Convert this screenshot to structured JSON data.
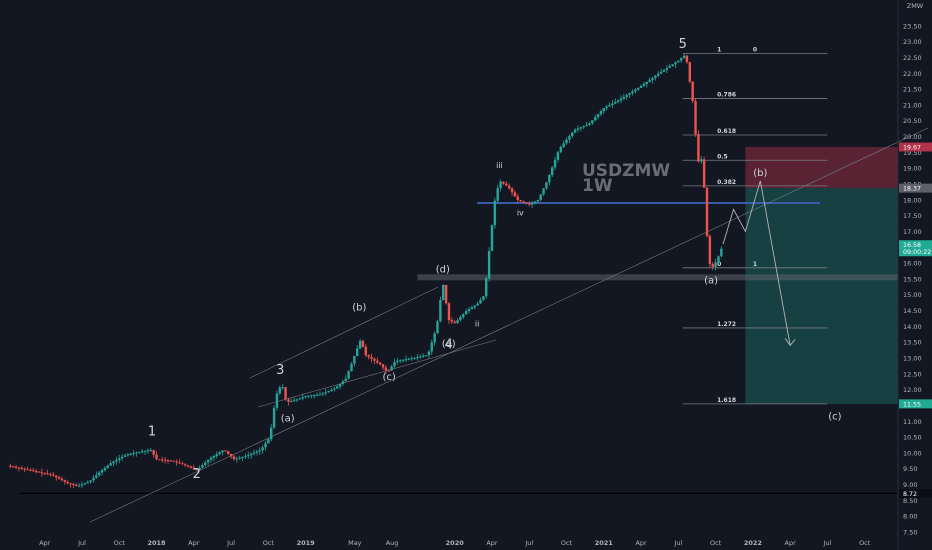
{
  "chart_data": {
    "type": "candlestick",
    "title": "USDZMW",
    "subtitle": "1W",
    "currency_label": "ZMW",
    "ylim": [
      7.5,
      24.0
    ],
    "y_ticks": [
      "7.50",
      "8.00",
      "8.50",
      "9.00",
      "9.50",
      "10.00",
      "10.50",
      "11.00",
      "11.50",
      "12.00",
      "12.50",
      "13.00",
      "13.50",
      "14.00",
      "14.50",
      "15.00",
      "15.50",
      "16.00",
      "16.50",
      "17.00",
      "17.50",
      "18.00",
      "18.50",
      "19.00",
      "19.50",
      "20.00",
      "20.50",
      "21.00",
      "21.50",
      "22.00",
      "22.50",
      "23.00",
      "23.50"
    ],
    "x_ticks": [
      {
        "t": 2017.25,
        "label": "Apr"
      },
      {
        "t": 2017.5,
        "label": "Jul"
      },
      {
        "t": 2017.75,
        "label": "Oct"
      },
      {
        "t": 2018.0,
        "label": "2018"
      },
      {
        "t": 2018.25,
        "label": "Apr"
      },
      {
        "t": 2018.5,
        "label": "Jul"
      },
      {
        "t": 2018.75,
        "label": "Oct"
      },
      {
        "t": 2019.0,
        "label": "2019"
      },
      {
        "t": 2019.33,
        "label": "May"
      },
      {
        "t": 2019.58,
        "label": "Aug"
      },
      {
        "t": 2020.0,
        "label": "2020"
      },
      {
        "t": 2020.25,
        "label": "Apr"
      },
      {
        "t": 2020.5,
        "label": "Jul"
      },
      {
        "t": 2020.75,
        "label": "Oct"
      },
      {
        "t": 2021.0,
        "label": "2021"
      },
      {
        "t": 2021.25,
        "label": "Apr"
      },
      {
        "t": 2021.5,
        "label": "Jul"
      },
      {
        "t": 2021.75,
        "label": "Oct"
      },
      {
        "t": 2022.0,
        "label": "2022"
      },
      {
        "t": 2022.25,
        "label": "Apr"
      },
      {
        "t": 2022.5,
        "label": "Jul"
      },
      {
        "t": 2022.75,
        "label": "Oct"
      }
    ],
    "price_path": [
      [
        2017.0,
        9.6
      ],
      [
        2017.15,
        9.45
      ],
      [
        2017.3,
        9.3
      ],
      [
        2017.4,
        9.05
      ],
      [
        2017.47,
        8.95
      ],
      [
        2017.55,
        9.1
      ],
      [
        2017.62,
        9.4
      ],
      [
        2017.7,
        9.7
      ],
      [
        2017.8,
        9.95
      ],
      [
        2017.9,
        10.05
      ],
      [
        2017.96,
        10.1
      ],
      [
        2018.0,
        9.8
      ],
      [
        2018.1,
        9.75
      ],
      [
        2018.2,
        9.6
      ],
      [
        2018.27,
        9.45
      ],
      [
        2018.35,
        9.8
      ],
      [
        2018.45,
        10.1
      ],
      [
        2018.52,
        9.8
      ],
      [
        2018.6,
        9.9
      ],
      [
        2018.7,
        10.1
      ],
      [
        2018.76,
        10.5
      ],
      [
        2018.8,
        11.8
      ],
      [
        2018.84,
        12.2
      ],
      [
        2018.87,
        11.6
      ],
      [
        2018.95,
        11.7
      ],
      [
        2019.0,
        11.8
      ],
      [
        2019.1,
        11.85
      ],
      [
        2019.2,
        12.05
      ],
      [
        2019.27,
        12.35
      ],
      [
        2019.33,
        13.1
      ],
      [
        2019.37,
        13.6
      ],
      [
        2019.4,
        13.1
      ],
      [
        2019.5,
        12.8
      ],
      [
        2019.55,
        12.55
      ],
      [
        2019.6,
        12.9
      ],
      [
        2019.72,
        13.0
      ],
      [
        2019.82,
        13.1
      ],
      [
        2019.88,
        14.0
      ],
      [
        2019.92,
        15.4
      ],
      [
        2019.96,
        14.2
      ],
      [
        2020.0,
        14.1
      ],
      [
        2020.08,
        14.5
      ],
      [
        2020.15,
        14.7
      ],
      [
        2020.2,
        15.0
      ],
      [
        2020.24,
        16.8
      ],
      [
        2020.27,
        18.0
      ],
      [
        2020.3,
        18.6
      ],
      [
        2020.36,
        18.4
      ],
      [
        2020.42,
        18.0
      ],
      [
        2020.5,
        17.85
      ],
      [
        2020.56,
        18.0
      ],
      [
        2020.62,
        18.6
      ],
      [
        2020.7,
        19.6
      ],
      [
        2020.8,
        20.2
      ],
      [
        2020.9,
        20.4
      ],
      [
        2021.0,
        20.9
      ],
      [
        2021.1,
        21.15
      ],
      [
        2021.25,
        21.6
      ],
      [
        2021.4,
        22.1
      ],
      [
        2021.5,
        22.4
      ],
      [
        2021.55,
        22.6
      ],
      [
        2021.6,
        21.0
      ],
      [
        2021.63,
        19.2
      ],
      [
        2021.66,
        19.3
      ],
      [
        2021.68,
        17.9
      ],
      [
        2021.7,
        16.2
      ],
      [
        2021.72,
        15.8
      ],
      [
        2021.76,
        16.1
      ],
      [
        2021.8,
        16.6
      ]
    ],
    "projection_path": [
      [
        2021.8,
        16.6
      ],
      [
        2021.87,
        17.7
      ],
      [
        2021.95,
        17.0
      ],
      [
        2022.05,
        18.6
      ],
      [
        2022.25,
        13.4
      ]
    ],
    "horizontal_levels": [
      {
        "y": 17.9,
        "color": "#3b5bab",
        "kind": "support"
      },
      {
        "y": 15.55,
        "color": "#5d606b",
        "kind": "zone"
      },
      {
        "y": 8.72,
        "color": "#000000",
        "kind": "line"
      }
    ],
    "fib_levels": [
      {
        "y": 22.62,
        "label": "1",
        "right": "0"
      },
      {
        "y": 21.2,
        "label": "0.786",
        "right": ""
      },
      {
        "y": 20.05,
        "label": "0.618",
        "right": ""
      },
      {
        "y": 19.25,
        "label": "0.5",
        "right": ""
      },
      {
        "y": 18.44,
        "label": "0.382",
        "right": ""
      },
      {
        "y": 15.85,
        "label": "0",
        "right": "1"
      },
      {
        "y": 13.95,
        "label": "1.272",
        "right": ""
      },
      {
        "y": 11.55,
        "label": "1.618",
        "right": ""
      }
    ],
    "position": {
      "stop": 19.67,
      "entry": 18.37,
      "target": 11.55,
      "t_start": 2021.95
    },
    "wave_labels": [
      {
        "text": "1",
        "t": 2017.97,
        "y": 10.55,
        "size": "big"
      },
      {
        "text": "2",
        "t": 2018.27,
        "y": 9.2,
        "size": "big"
      },
      {
        "text": "3",
        "t": 2018.83,
        "y": 12.5,
        "size": "big"
      },
      {
        "text": "4",
        "t": 2019.96,
        "y": 13.3,
        "size": "big"
      },
      {
        "text": "5",
        "t": 2021.53,
        "y": 22.8,
        "size": "big"
      },
      {
        "text": "(a)",
        "t": 2018.88,
        "y": 11.0,
        "size": "small"
      },
      {
        "text": "(b)",
        "t": 2019.36,
        "y": 14.5,
        "size": "small"
      },
      {
        "text": "(c)",
        "t": 2019.56,
        "y": 12.3,
        "size": "small"
      },
      {
        "text": "(d)",
        "t": 2019.92,
        "y": 15.7,
        "size": "small"
      },
      {
        "text": "(e)",
        "t": 2019.96,
        "y": 13.35,
        "size": "small"
      },
      {
        "text": "iii",
        "t": 2020.3,
        "y": 19.0,
        "size": "tiny"
      },
      {
        "text": "iv",
        "t": 2020.44,
        "y": 17.5,
        "size": "tiny"
      },
      {
        "text": "ii",
        "t": 2020.15,
        "y": 14.0,
        "size": "tiny"
      },
      {
        "text": "(a)",
        "t": 2021.72,
        "y": 15.35,
        "size": "small"
      },
      {
        "text": "(b)",
        "t": 2022.05,
        "y": 18.75,
        "size": "small"
      },
      {
        "text": "(c)",
        "t": 2022.55,
        "y": 11.05,
        "size": "small"
      }
    ],
    "price_badges": [
      {
        "y": 19.67,
        "label": "19.67",
        "color": "#b2324a"
      },
      {
        "y": 18.37,
        "label": "18.37",
        "color": "#5d606b"
      },
      {
        "y": 16.58,
        "label": "16.58",
        "sublabel": "09:00:22",
        "color": "#22ab94"
      },
      {
        "y": 11.55,
        "label": "11.55",
        "color": "#22ab94"
      },
      {
        "y": 8.72,
        "label": "8.72",
        "color": "#0b0e17"
      }
    ],
    "colors": {
      "up": "#26a69a",
      "down": "#ef5350",
      "text": "#b2b5be",
      "grid": "#1e2230"
    }
  }
}
